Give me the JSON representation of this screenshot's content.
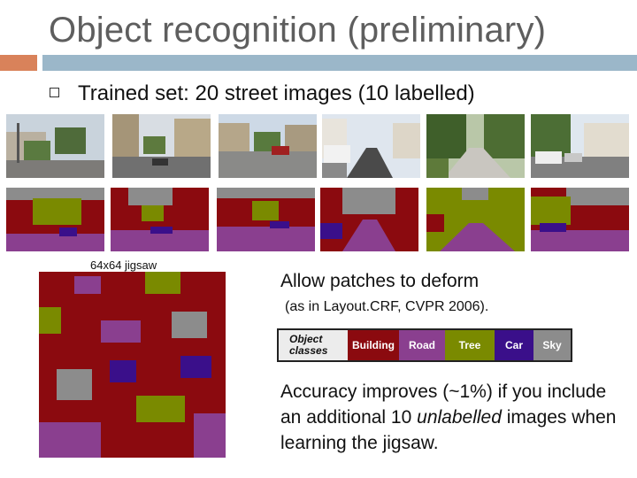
{
  "slide": {
    "title": "Object recognition (preliminary)",
    "bullet": "Trained set: 20 street images (10 labelled)",
    "jigsaw_label": "64x64 jigsaw",
    "text1": "Allow patches to deform",
    "text2": "(as in Layout.CRF, CVPR 2006).",
    "accuracy": {
      "before": "Accuracy improves (~1%) if you include an additional 10 ",
      "emphasis": "unlabelled",
      "after": " images when learning the jigsaw."
    }
  },
  "legend": {
    "header_line1": "Object",
    "header_line2": "classes",
    "classes": [
      {
        "label": "Building",
        "color": "#8b0a0f"
      },
      {
        "label": "Road",
        "color": "#8a3f8f"
      },
      {
        "label": "Tree",
        "color": "#7a8a00"
      },
      {
        "label": "Car",
        "color": "#3a0f8a"
      },
      {
        "label": "Sky",
        "color": "#8c8c8c"
      }
    ]
  },
  "colors": {
    "title": "#5e5e5e",
    "accent_orange": "#d9825a",
    "accent_blue": "#9bb7c9"
  }
}
